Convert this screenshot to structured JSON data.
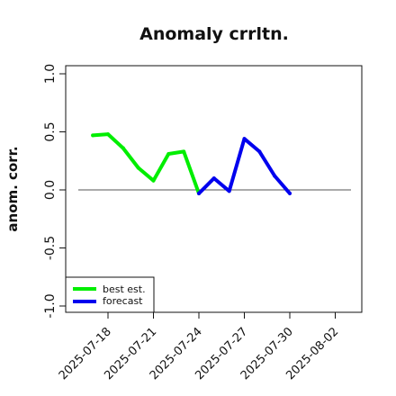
{
  "chart_data": {
    "type": "line",
    "title": "Anomaly crrltn.",
    "ylabel": "anom. corr.",
    "xlabel": "",
    "ylim": [
      -1.0,
      1.0
    ],
    "y_ticks": [
      "-1.0",
      "-0.5",
      "0.0",
      "0.5",
      "1.0"
    ],
    "x_ticks": [
      "2025-07-18",
      "2025-07-21",
      "2025-07-24",
      "2025-07-27",
      "2025-07-30",
      "2025-08-02"
    ],
    "highlight_tick": "2025-07-24",
    "highlight_color": "#228B22",
    "reference_line": 0.0,
    "legend_position": "bottom-left",
    "series": [
      {
        "name": "best est.",
        "color": "#00ee00",
        "x": [
          "2025-07-17",
          "2025-07-18",
          "2025-07-19",
          "2025-07-20",
          "2025-07-21",
          "2025-07-22",
          "2025-07-23",
          "2025-07-24"
        ],
        "y": [
          0.47,
          0.48,
          0.36,
          0.19,
          0.08,
          0.31,
          0.33,
          -0.03
        ]
      },
      {
        "name": "forecast",
        "color": "#0000ee",
        "x": [
          "2025-07-24",
          "2025-07-25",
          "2025-07-26",
          "2025-07-27",
          "2025-07-28",
          "2025-07-29",
          "2025-07-30"
        ],
        "y": [
          -0.03,
          0.1,
          -0.01,
          0.44,
          0.33,
          0.12,
          -0.03
        ]
      }
    ]
  }
}
